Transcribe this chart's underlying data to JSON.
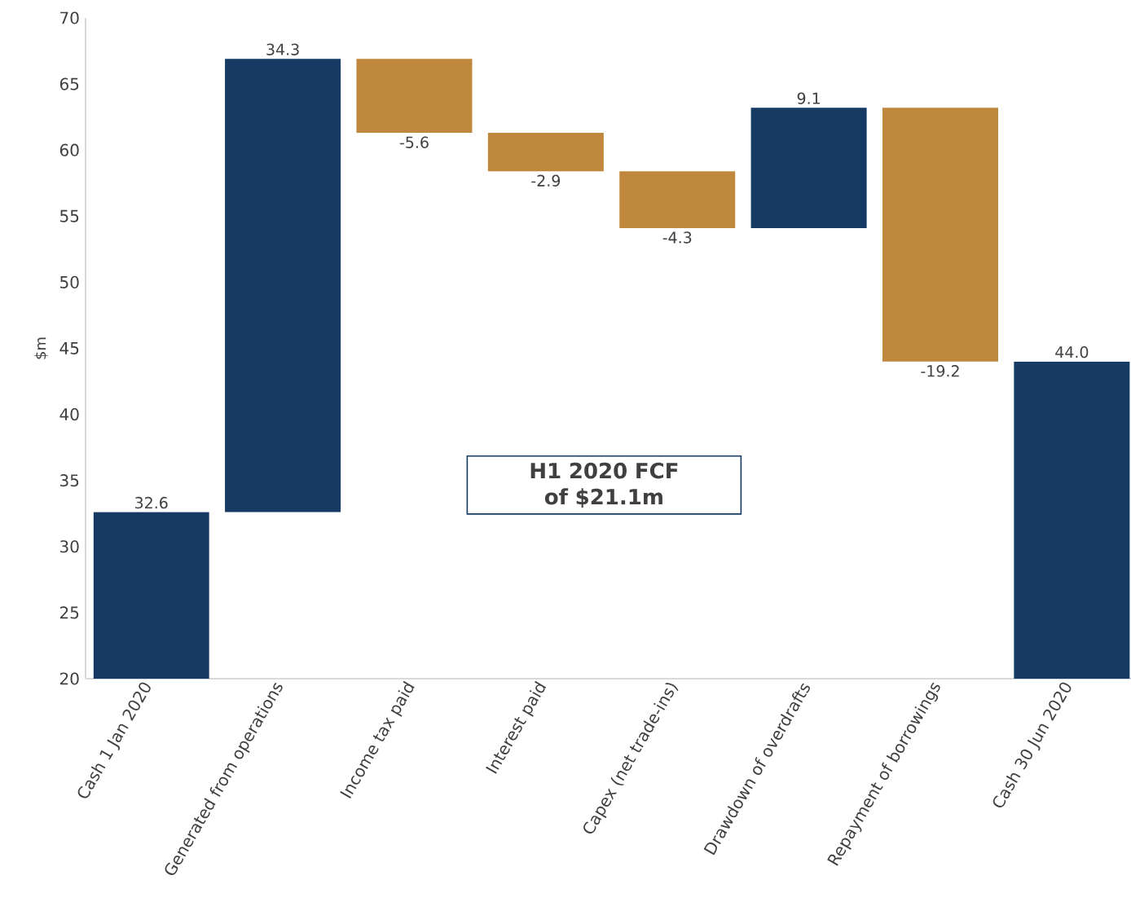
{
  "chart_data": {
    "type": "bar",
    "ylabel": "$m",
    "categories": [
      "Cash 1 Jan 2020",
      "Generated from operations",
      "Income tax paid",
      "Interest paid",
      "Capex (net trade-ins)",
      "Drawdown of overdrafts",
      "Repayment of borrowings",
      "Cash 30 Jun 2020"
    ],
    "values": [
      32.6,
      34.3,
      -5.6,
      -2.9,
      -4.3,
      9.1,
      -19.2,
      44.0
    ],
    "base": [
      0,
      32.6,
      66.9,
      61.3,
      58.4,
      54.1,
      63.2,
      0
    ],
    "colors": [
      "#163a64",
      "#163a64",
      "#bf883d",
      "#bf883d",
      "#bf883d",
      "#163a64",
      "#bf883d",
      "#163a64"
    ],
    "value_labels": [
      "32.6",
      "34.3",
      "-5.6",
      "-2.9",
      "-4.3",
      "9.1",
      "-19.2",
      "44.0"
    ],
    "ylim": [
      20,
      70
    ],
    "yticks": [
      20,
      25,
      30,
      35,
      40,
      45,
      50,
      55,
      60,
      65,
      70
    ],
    "grid": false,
    "annotations": [
      "**H1 2020 FCF of $21.1m**"
    ]
  }
}
